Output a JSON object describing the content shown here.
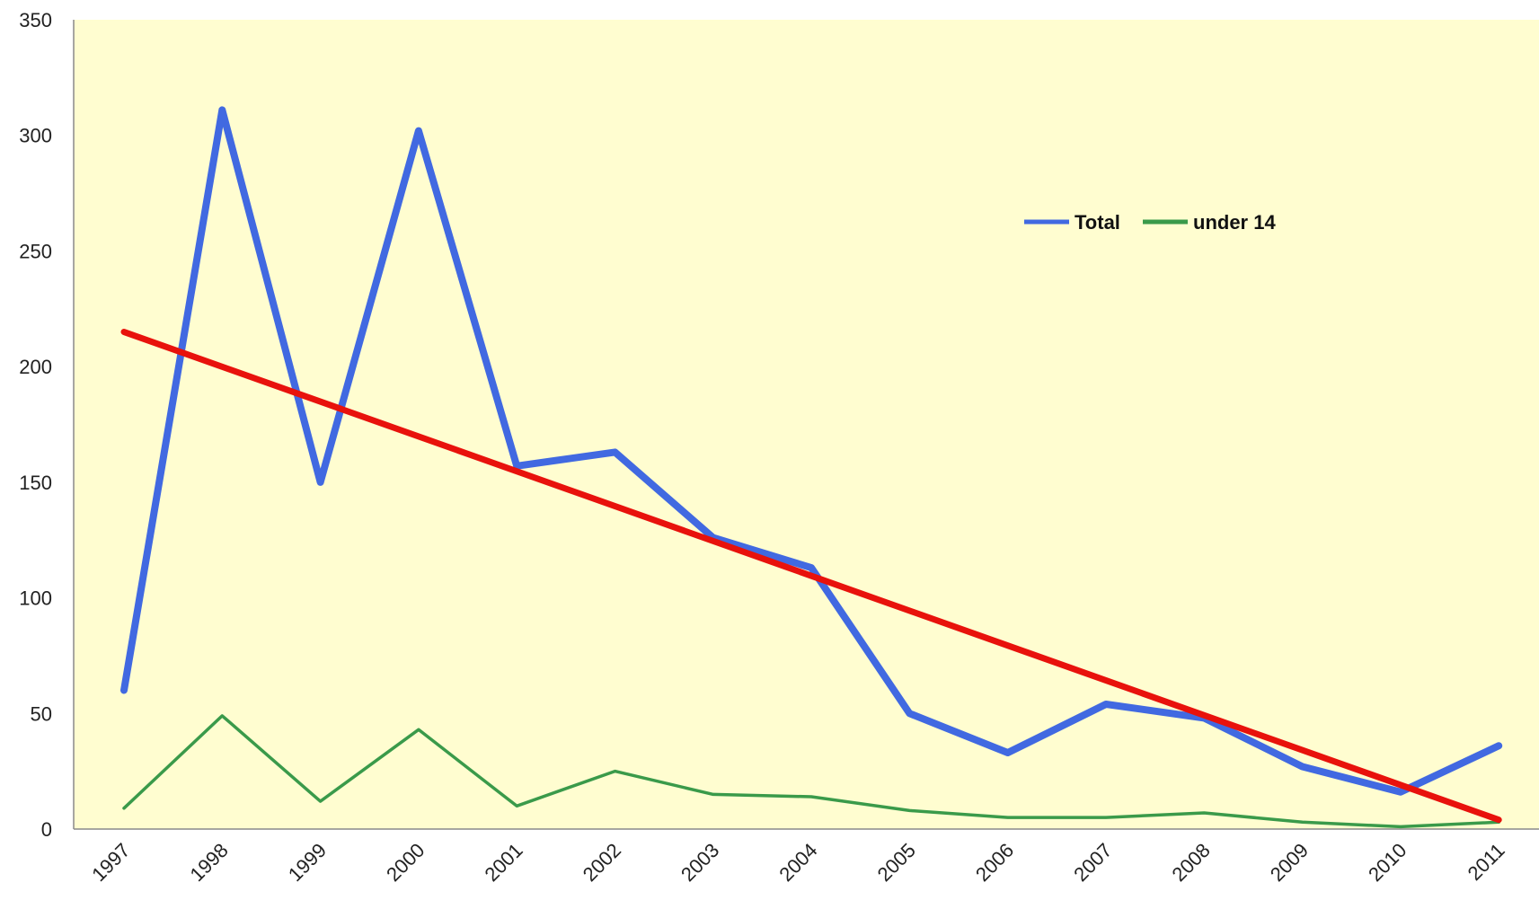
{
  "chart_data": {
    "type": "line",
    "categories": [
      "1997",
      "1998",
      "1999",
      "2000",
      "2001",
      "2002",
      "2003",
      "2004",
      "2005",
      "2006",
      "2007",
      "2008",
      "2009",
      "2010",
      "2011"
    ],
    "series": [
      {
        "name": "Total",
        "color": "#4169E1",
        "values": [
          60,
          311,
          150,
          302,
          157,
          163,
          126,
          113,
          50,
          33,
          54,
          48,
          27,
          16,
          36
        ]
      },
      {
        "name": "under 14",
        "color": "#3A9A4A",
        "values": [
          9,
          49,
          12,
          43,
          10,
          25,
          15,
          14,
          8,
          5,
          5,
          7,
          3,
          1,
          3
        ]
      }
    ],
    "trendline": {
      "color": "#E8120C",
      "start": 215,
      "end": 4
    },
    "ylim": [
      0,
      350
    ],
    "yticks": [
      0,
      50,
      100,
      150,
      200,
      250,
      300,
      350
    ],
    "plot_background": "#FFFDD0",
    "grid": false,
    "legend_position": "top-right"
  }
}
